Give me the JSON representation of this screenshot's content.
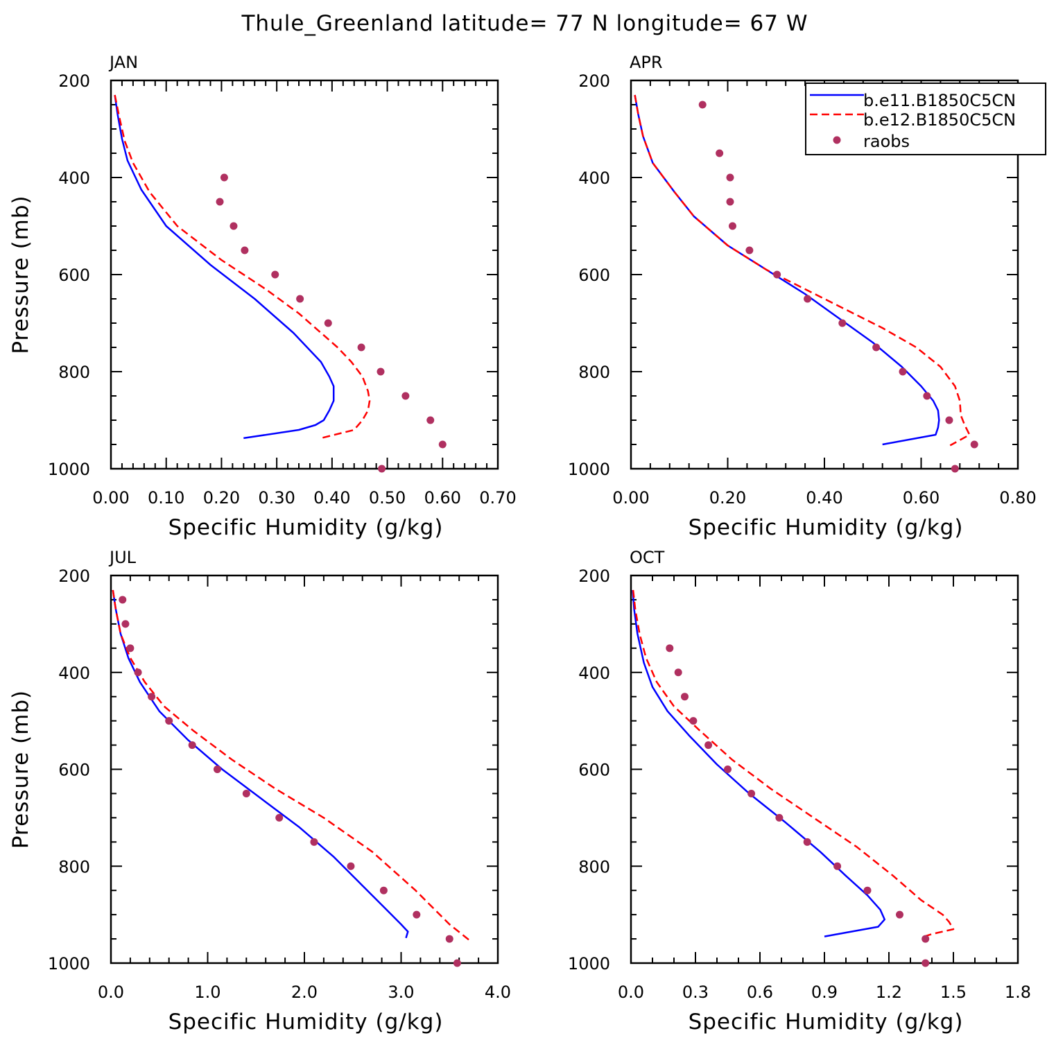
{
  "page_title": "Thule_Greenland  latitude= 77 N longitude= 67 W",
  "legend": {
    "entries": [
      {
        "label": "b.e11.B1850C5CN",
        "color": "#0000ff",
        "style": "solid"
      },
      {
        "label": "b.e12.B1850C5CN",
        "color": "#ff0000",
        "style": "dashed"
      },
      {
        "label": "raobs",
        "color": "#b03060",
        "style": "marker"
      }
    ]
  },
  "chart_data": [
    {
      "type": "line",
      "panel_label": "JAN",
      "xlabel": "Specific Humidity (g/kg)",
      "ylabel": "Pressure (mb)",
      "xlim": [
        0,
        0.7
      ],
      "ylim": [
        1000,
        200
      ],
      "x_ticks": [
        "0.00",
        "0.10",
        "0.20",
        "0.30",
        "0.40",
        "0.50",
        "0.60",
        "0.70"
      ],
      "y_ticks": [
        "200",
        "400",
        "600",
        "800",
        "1000"
      ],
      "series": [
        {
          "name": "b.e11.B1850C5CN",
          "color": "#0000ff",
          "style": "solid",
          "x": [
            0.007,
            0.012,
            0.02,
            0.03,
            0.055,
            0.1,
            0.18,
            0.26,
            0.33,
            0.38,
            0.395,
            0.403,
            0.403,
            0.395,
            0.385,
            0.37,
            0.34,
            0.24
          ],
          "y": [
            230,
            270,
            320,
            365,
            425,
            500,
            580,
            650,
            720,
            780,
            810,
            830,
            860,
            880,
            900,
            910,
            920,
            937
          ]
        },
        {
          "name": "b.e12.B1850C5CN",
          "color": "#ff0000",
          "style": "dashed",
          "x": [
            0.007,
            0.015,
            0.025,
            0.04,
            0.07,
            0.12,
            0.2,
            0.28,
            0.34,
            0.38,
            0.41,
            0.435,
            0.455,
            0.465,
            0.468,
            0.465,
            0.455,
            0.44,
            0.38
          ],
          "y": [
            230,
            275,
            325,
            370,
            430,
            500,
            570,
            630,
            680,
            720,
            750,
            780,
            810,
            840,
            860,
            880,
            900,
            920,
            937
          ]
        },
        {
          "name": "raobs",
          "color": "#b03060",
          "style": "marker",
          "x": [
            0.205,
            0.197,
            0.222,
            0.242,
            0.297,
            0.342,
            0.393,
            0.453,
            0.488,
            0.533,
            0.578,
            0.6,
            0.49
          ],
          "y": [
            400,
            450,
            500,
            550,
            600,
            650,
            700,
            750,
            800,
            850,
            900,
            950,
            1000
          ]
        }
      ]
    },
    {
      "type": "line",
      "panel_label": "APR",
      "xlabel": "Specific Humidity (g/kg)",
      "ylabel": "",
      "xlim": [
        0,
        0.8
      ],
      "ylim": [
        1000,
        200
      ],
      "x_ticks": [
        "0.00",
        "0.20",
        "0.40",
        "0.60",
        "0.80"
      ],
      "y_ticks": [
        "200",
        "400",
        "600",
        "800",
        "1000"
      ],
      "series": [
        {
          "name": "b.e11.B1850C5CN",
          "color": "#0000ff",
          "style": "solid",
          "x": [
            0.008,
            0.015,
            0.025,
            0.045,
            0.09,
            0.13,
            0.2,
            0.28,
            0.36,
            0.43,
            0.5,
            0.56,
            0.6,
            0.625,
            0.635,
            0.637,
            0.635,
            0.63,
            0.52
          ],
          "y": [
            230,
            270,
            315,
            370,
            430,
            480,
            540,
            590,
            640,
            690,
            740,
            790,
            830,
            860,
            880,
            900,
            915,
            930,
            950
          ]
        },
        {
          "name": "b.e12.B1850C5CN",
          "color": "#ff0000",
          "style": "dashed",
          "x": [
            0.008,
            0.015,
            0.025,
            0.045,
            0.09,
            0.13,
            0.2,
            0.28,
            0.36,
            0.44,
            0.52,
            0.59,
            0.64,
            0.67,
            0.68,
            0.682,
            0.69,
            0.7,
            0.66
          ],
          "y": [
            230,
            270,
            315,
            370,
            430,
            480,
            540,
            590,
            630,
            670,
            710,
            750,
            790,
            830,
            860,
            890,
            910,
            930,
            952
          ]
        },
        {
          "name": "raobs",
          "color": "#b03060",
          "style": "marker",
          "x": [
            0.148,
            0.183,
            0.205,
            0.205,
            0.21,
            0.245,
            0.302,
            0.365,
            0.437,
            0.507,
            0.562,
            0.612,
            0.658,
            0.71,
            0.67
          ],
          "y": [
            250,
            350,
            400,
            450,
            500,
            550,
            600,
            650,
            700,
            750,
            800,
            850,
            900,
            950,
            1000
          ]
        }
      ]
    },
    {
      "type": "line",
      "panel_label": "JUL",
      "xlabel": "Specific Humidity (g/kg)",
      "ylabel": "Pressure (mb)",
      "xlim": [
        0,
        4.0
      ],
      "ylim": [
        1000,
        200
      ],
      "x_ticks": [
        "0.0",
        "1.0",
        "2.0",
        "3.0",
        "4.0"
      ],
      "y_ticks": [
        "200",
        "400",
        "600",
        "800",
        "1000"
      ],
      "series": [
        {
          "name": "b.e11.B1850C5CN",
          "color": "#0000ff",
          "style": "solid",
          "x": [
            0.02,
            0.05,
            0.1,
            0.18,
            0.3,
            0.5,
            0.8,
            1.15,
            1.55,
            1.95,
            2.3,
            2.6,
            2.85,
            3.0,
            3.07,
            3.05
          ],
          "y": [
            230,
            270,
            320,
            370,
            420,
            480,
            540,
            600,
            660,
            720,
            780,
            840,
            890,
            920,
            935,
            948
          ]
        },
        {
          "name": "b.e12.B1850C5CN",
          "color": "#ff0000",
          "style": "dashed",
          "x": [
            0.02,
            0.05,
            0.1,
            0.2,
            0.35,
            0.55,
            0.85,
            1.25,
            1.7,
            2.2,
            2.7,
            3.15,
            3.5,
            3.72
          ],
          "y": [
            230,
            270,
            320,
            370,
            420,
            470,
            520,
            580,
            640,
            700,
            770,
            850,
            920,
            955
          ]
        },
        {
          "name": "raobs",
          "color": "#b03060",
          "style": "marker",
          "x": [
            0.12,
            0.15,
            0.2,
            0.28,
            0.42,
            0.6,
            0.84,
            1.1,
            1.4,
            1.74,
            2.1,
            2.48,
            2.82,
            3.16,
            3.5,
            3.58
          ],
          "y": [
            250,
            300,
            350,
            400,
            450,
            500,
            550,
            600,
            650,
            700,
            750,
            800,
            850,
            900,
            950,
            1000
          ]
        }
      ]
    },
    {
      "type": "line",
      "panel_label": "OCT",
      "xlabel": "Specific Humidity (g/kg)",
      "ylabel": "",
      "xlim": [
        0,
        1.8
      ],
      "ylim": [
        1000,
        200
      ],
      "x_ticks": [
        "0.0",
        "0.3",
        "0.6",
        "0.9",
        "1.2",
        "1.5",
        "1.8"
      ],
      "y_ticks": [
        "200",
        "400",
        "600",
        "800",
        "1000"
      ],
      "series": [
        {
          "name": "b.e11.B1850C5CN",
          "color": "#0000ff",
          "style": "solid",
          "x": [
            0.008,
            0.015,
            0.03,
            0.06,
            0.1,
            0.17,
            0.27,
            0.4,
            0.55,
            0.72,
            0.88,
            1.0,
            1.1,
            1.16,
            1.18,
            1.15,
            0.9
          ],
          "y": [
            230,
            270,
            320,
            380,
            430,
            480,
            530,
            590,
            650,
            710,
            770,
            820,
            860,
            890,
            910,
            925,
            945
          ]
        },
        {
          "name": "b.e12.B1850C5CN",
          "color": "#ff0000",
          "style": "dashed",
          "x": [
            0.01,
            0.02,
            0.04,
            0.07,
            0.12,
            0.2,
            0.32,
            0.47,
            0.65,
            0.85,
            1.05,
            1.22,
            1.35,
            1.45,
            1.48,
            1.5,
            1.4,
            1.35
          ],
          "y": [
            230,
            270,
            320,
            370,
            420,
            470,
            520,
            580,
            640,
            700,
            760,
            820,
            870,
            900,
            915,
            930,
            940,
            947
          ]
        },
        {
          "name": "raobs",
          "color": "#b03060",
          "style": "marker",
          "x": [
            0.18,
            0.22,
            0.25,
            0.29,
            0.36,
            0.45,
            0.56,
            0.69,
            0.82,
            0.96,
            1.1,
            1.25,
            1.37,
            1.37
          ],
          "y": [
            350,
            400,
            450,
            500,
            550,
            600,
            650,
            700,
            750,
            800,
            850,
            900,
            950,
            1000
          ]
        }
      ]
    }
  ]
}
